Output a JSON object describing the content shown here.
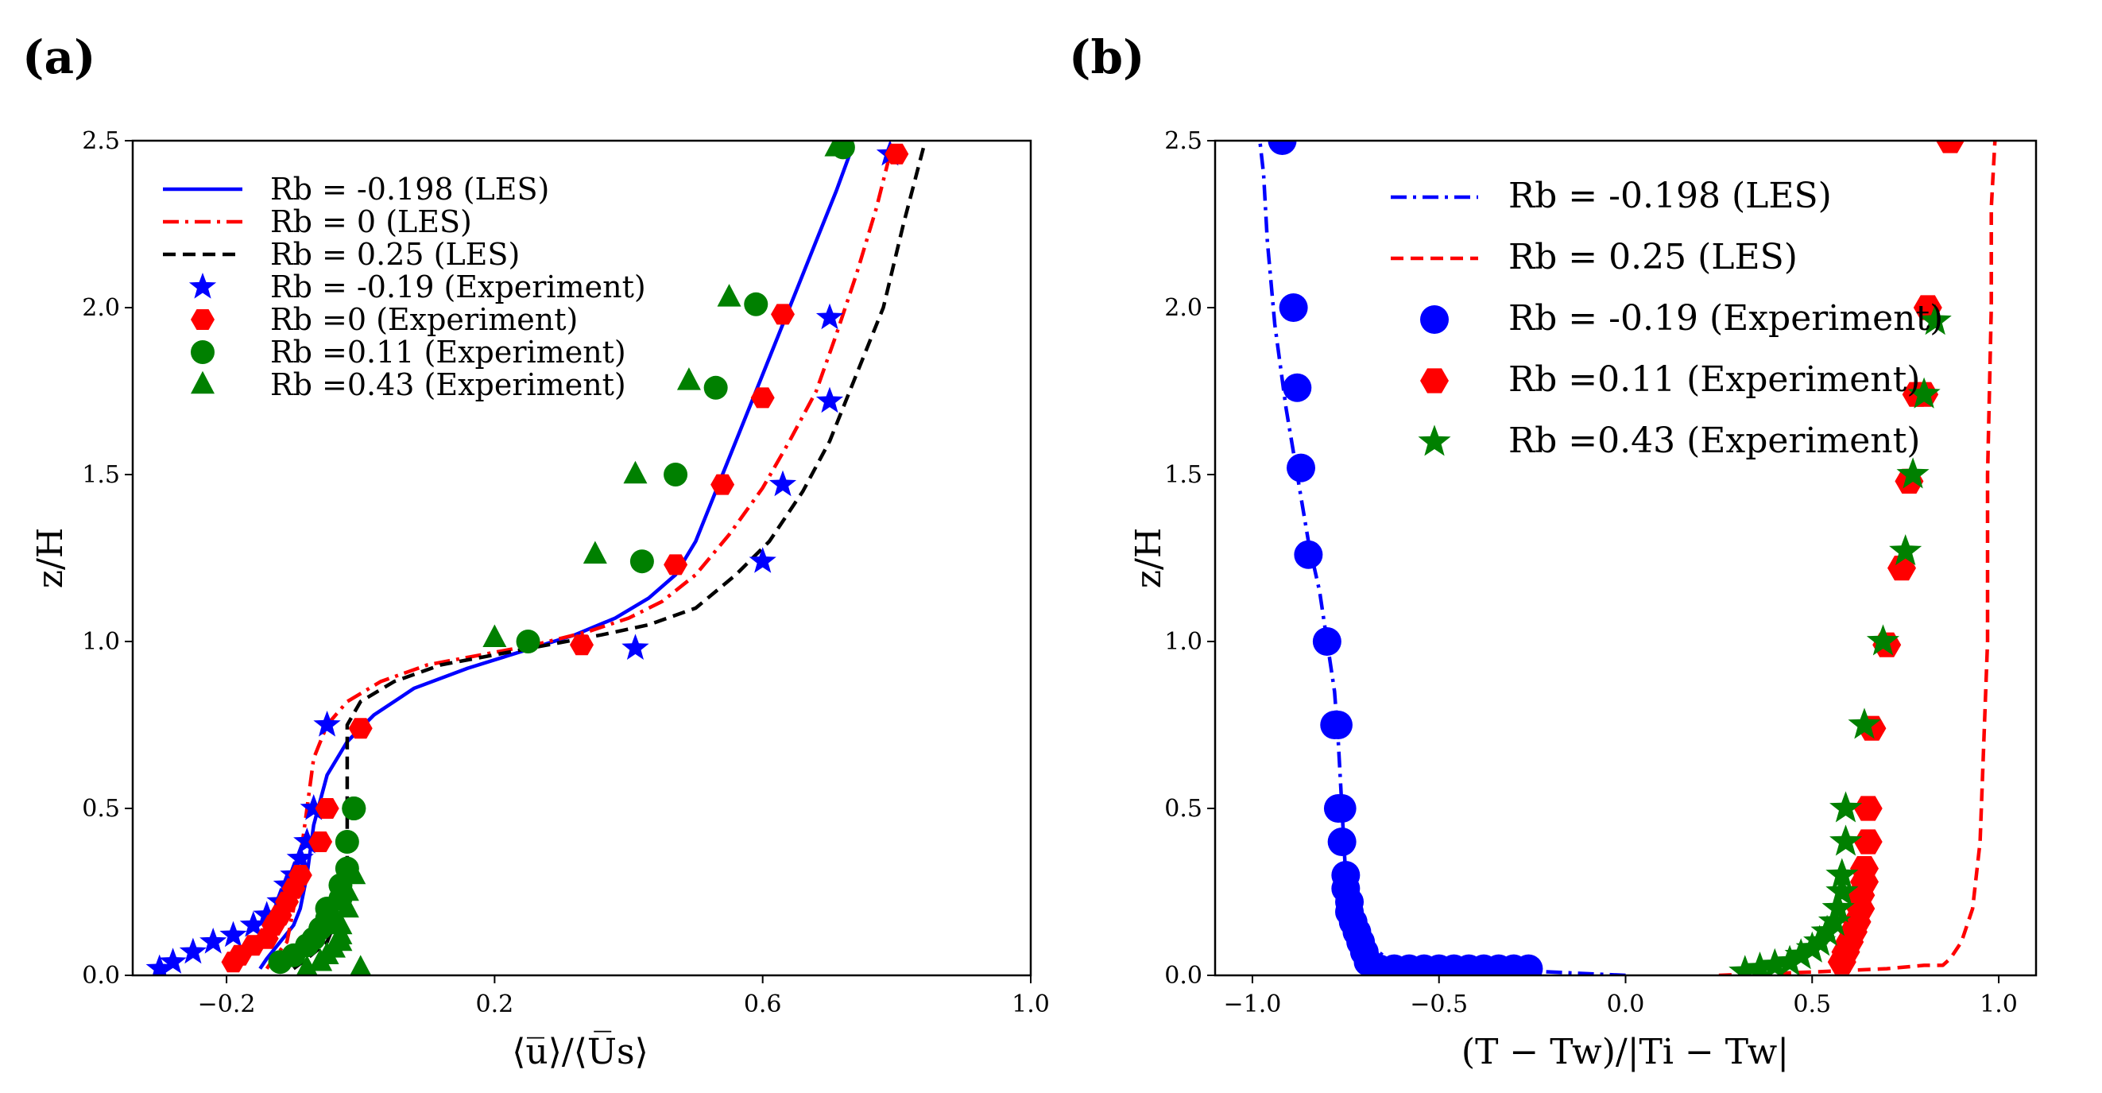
{
  "colors": {
    "blue": "#0000ff",
    "red": "#ff0000",
    "black": "#000000",
    "green": "#008000"
  },
  "chart_data": [
    {
      "panel": "(a)",
      "type": "line",
      "xlabel": "⟨u̅⟩/⟨U̅s⟩",
      "ylabel": "z/H",
      "xlim": [
        -0.34,
        1.0
      ],
      "ylim": [
        0.0,
        2.5
      ],
      "xticks": [
        -0.2,
        0.2,
        0.6,
        1.0
      ],
      "xtick_labels": [
        "−0.2",
        "0.2",
        "0.6",
        "1.0"
      ],
      "yticks": [
        0.0,
        0.5,
        1.0,
        1.5,
        2.0,
        2.5
      ],
      "ytick_labels": [
        "0.0",
        "0.5",
        "1.0",
        "1.5",
        "2.0",
        "2.5"
      ],
      "grid": false,
      "legend_position": "upper-left",
      "series": [
        {
          "name": "Rb = -0.198 (LES)",
          "kind": "line",
          "style": "solid",
          "color": "#0000ff",
          "x": [
            -0.15,
            -0.14,
            -0.12,
            -0.1,
            -0.09,
            -0.08,
            -0.07,
            -0.05,
            -0.02,
            0.02,
            0.08,
            0.16,
            0.24,
            0.32,
            0.38,
            0.43,
            0.47,
            0.5,
            0.53,
            0.56,
            0.59,
            0.62,
            0.65,
            0.68,
            0.71,
            0.73
          ],
          "y": [
            0.02,
            0.05,
            0.1,
            0.15,
            0.2,
            0.3,
            0.45,
            0.6,
            0.7,
            0.78,
            0.86,
            0.92,
            0.97,
            1.02,
            1.07,
            1.13,
            1.2,
            1.3,
            1.45,
            1.6,
            1.75,
            1.9,
            2.05,
            2.2,
            2.35,
            2.46
          ]
        },
        {
          "name": "Rb = 0 (LES)",
          "kind": "line",
          "style": "dashdot",
          "color": "#ff0000",
          "x": [
            -0.14,
            -0.13,
            -0.11,
            -0.1,
            -0.09,
            -0.08,
            -0.07,
            -0.05,
            -0.02,
            0.03,
            0.1,
            0.18,
            0.26,
            0.34,
            0.4,
            0.45,
            0.5,
            0.55,
            0.6,
            0.64,
            0.68,
            0.71,
            0.74,
            0.77,
            0.79
          ],
          "y": [
            0.02,
            0.05,
            0.1,
            0.2,
            0.35,
            0.5,
            0.65,
            0.75,
            0.82,
            0.88,
            0.93,
            0.96,
            0.99,
            1.03,
            1.07,
            1.12,
            1.2,
            1.32,
            1.46,
            1.6,
            1.75,
            1.92,
            2.1,
            2.3,
            2.46
          ]
        },
        {
          "name": "Rb = 0.25 (LES)",
          "kind": "line",
          "style": "dashed",
          "color": "#000000",
          "x": [
            -0.1,
            -0.08,
            -0.05,
            -0.03,
            -0.02,
            -0.02,
            -0.02,
            -0.02,
            0.0,
            0.05,
            0.12,
            0.2,
            0.28,
            0.36,
            0.43,
            0.5,
            0.56,
            0.61,
            0.66,
            0.7,
            0.74,
            0.78,
            0.81,
            0.84
          ],
          "y": [
            0.02,
            0.05,
            0.1,
            0.2,
            0.35,
            0.5,
            0.65,
            0.75,
            0.82,
            0.88,
            0.93,
            0.96,
            0.99,
            1.02,
            1.05,
            1.1,
            1.2,
            1.3,
            1.45,
            1.6,
            1.8,
            2.0,
            2.25,
            2.48
          ]
        },
        {
          "name": "Rb = -0.19 (Experiment)",
          "kind": "marker",
          "marker": "star",
          "color": "#0000ff",
          "x": [
            -0.3,
            -0.28,
            -0.25,
            -0.22,
            -0.19,
            -0.16,
            -0.14,
            -0.12,
            -0.11,
            -0.1,
            -0.09,
            -0.08,
            -0.07,
            -0.05,
            0.41,
            0.6,
            0.63,
            0.7,
            0.7,
            0.79
          ],
          "y": [
            0.02,
            0.04,
            0.07,
            0.1,
            0.12,
            0.15,
            0.18,
            0.22,
            0.27,
            0.3,
            0.35,
            0.4,
            0.5,
            0.75,
            0.98,
            1.24,
            1.47,
            1.72,
            1.97,
            2.46
          ]
        },
        {
          "name": "Rb =0 (Experiment)",
          "kind": "marker",
          "marker": "hexagon",
          "color": "#ff0000",
          "x": [
            -0.19,
            -0.18,
            -0.16,
            -0.14,
            -0.13,
            -0.12,
            -0.11,
            -0.1,
            -0.09,
            -0.06,
            -0.05,
            -0.05,
            0.0,
            0.33,
            0.47,
            0.54,
            0.6,
            0.63,
            0.8
          ],
          "y": [
            0.04,
            0.06,
            0.09,
            0.11,
            0.15,
            0.18,
            0.22,
            0.26,
            0.3,
            0.4,
            0.5,
            0.5,
            0.74,
            0.99,
            1.23,
            1.47,
            1.73,
            1.98,
            2.46
          ]
        },
        {
          "name": "Rb =0.11 (Experiment)",
          "kind": "marker",
          "marker": "circle",
          "color": "#008000",
          "x": [
            -0.12,
            -0.1,
            -0.08,
            -0.07,
            -0.06,
            -0.05,
            -0.05,
            -0.03,
            -0.03,
            -0.02,
            -0.02,
            -0.01,
            -0.01,
            0.25,
            0.42,
            0.47,
            0.53,
            0.59,
            0.72
          ],
          "y": [
            0.04,
            0.06,
            0.09,
            0.11,
            0.14,
            0.17,
            0.2,
            0.23,
            0.27,
            0.32,
            0.4,
            0.5,
            0.5,
            1.0,
            1.24,
            1.5,
            1.76,
            2.01,
            2.48
          ]
        },
        {
          "name": "Rb =0.43 (Experiment)",
          "kind": "marker",
          "marker": "triangle",
          "color": "#008000",
          "x": [
            -0.08,
            -0.06,
            -0.05,
            -0.04,
            -0.03,
            -0.03,
            -0.03,
            -0.02,
            -0.02,
            -0.01,
            0.0,
            0.2,
            0.35,
            0.41,
            0.49,
            0.55,
            0.71
          ],
          "y": [
            0.02,
            0.04,
            0.06,
            0.08,
            0.1,
            0.12,
            0.15,
            0.2,
            0.25,
            0.3,
            0.02,
            1.01,
            1.26,
            1.5,
            1.78,
            2.03,
            2.48
          ]
        }
      ]
    },
    {
      "panel": "(b)",
      "type": "line",
      "xlabel": "(T − Tw)/|Ti − Tw|",
      "ylabel": "z/H",
      "xlim": [
        -1.1,
        1.1
      ],
      "ylim": [
        0.0,
        2.5
      ],
      "xticks": [
        -1.0,
        -0.5,
        0.0,
        0.5,
        1.0
      ],
      "xtick_labels": [
        "−1.0",
        "−0.5",
        "0.0",
        "0.5",
        "1.0"
      ],
      "yticks": [
        0.0,
        0.5,
        1.0,
        1.5,
        2.0,
        2.5
      ],
      "ytick_labels": [
        "0.0",
        "0.5",
        "1.0",
        "1.5",
        "2.0",
        "2.5"
      ],
      "grid": false,
      "legend_position": "upper-center",
      "series": [
        {
          "name": "Rb = -0.198 (LES)",
          "kind": "line",
          "style": "dashdot",
          "color": "#0000ff",
          "x": [
            0.0,
            -0.2,
            -0.4,
            -0.55,
            -0.65,
            -0.7,
            -0.72,
            -0.74,
            -0.75,
            -0.76,
            -0.77,
            -0.78,
            -0.8,
            -0.82,
            -0.85,
            -0.88,
            -0.91,
            -0.94,
            -0.96,
            -0.97,
            -0.98
          ],
          "y": [
            0.0,
            0.01,
            0.02,
            0.03,
            0.06,
            0.1,
            0.15,
            0.2,
            0.3,
            0.5,
            0.7,
            0.85,
            1.0,
            1.15,
            1.3,
            1.5,
            1.7,
            1.95,
            2.2,
            2.4,
            2.5
          ]
        },
        {
          "name": "Rb = 0.25 (LES)",
          "kind": "line",
          "style": "dashed",
          "color": "#ff0000",
          "x": [
            0.25,
            0.5,
            0.7,
            0.8,
            0.85,
            0.87,
            0.9,
            0.93,
            0.95,
            0.96,
            0.97,
            0.97,
            0.98,
            0.98,
            0.99
          ],
          "y": [
            0.0,
            0.01,
            0.02,
            0.03,
            0.03,
            0.05,
            0.1,
            0.2,
            0.4,
            0.7,
            1.0,
            1.5,
            2.0,
            2.3,
            2.5
          ]
        },
        {
          "name": "Rb = -0.19 (Experiment)",
          "kind": "marker",
          "marker": "circle",
          "color": "#0000ff",
          "x": [
            -0.26,
            -0.3,
            -0.34,
            -0.38,
            -0.42,
            -0.46,
            -0.5,
            -0.54,
            -0.58,
            -0.62,
            -0.66,
            -0.69,
            -0.7,
            -0.71,
            -0.72,
            -0.73,
            -0.74,
            -0.74,
            -0.75,
            -0.75,
            -0.76,
            -0.76,
            -0.77,
            -0.77,
            -0.78,
            -0.8,
            -0.85,
            -0.87,
            -0.88,
            -0.89,
            -0.92
          ],
          "y": [
            0.02,
            0.02,
            0.02,
            0.02,
            0.02,
            0.02,
            0.02,
            0.02,
            0.02,
            0.02,
            0.02,
            0.04,
            0.07,
            0.1,
            0.13,
            0.16,
            0.19,
            0.22,
            0.26,
            0.3,
            0.4,
            0.5,
            0.5,
            0.75,
            0.75,
            1.0,
            1.26,
            1.52,
            1.76,
            2.0,
            2.5
          ]
        },
        {
          "name": "Rb =0.11 (Experiment)",
          "kind": "marker",
          "marker": "hexagon",
          "color": "#ff0000",
          "x": [
            0.58,
            0.59,
            0.6,
            0.61,
            0.62,
            0.63,
            0.63,
            0.64,
            0.64,
            0.65,
            0.65,
            0.66,
            0.7,
            0.74,
            0.76,
            0.78,
            0.8,
            0.81,
            0.87
          ],
          "y": [
            0.04,
            0.07,
            0.1,
            0.13,
            0.16,
            0.2,
            0.24,
            0.28,
            0.32,
            0.4,
            0.5,
            0.74,
            0.99,
            1.22,
            1.48,
            1.74,
            1.74,
            2.0,
            2.5
          ]
        },
        {
          "name": "Rb =0.43 (Experiment)",
          "kind": "marker",
          "marker": "star",
          "color": "#008000",
          "x": [
            0.32,
            0.36,
            0.4,
            0.44,
            0.47,
            0.5,
            0.52,
            0.54,
            0.56,
            0.57,
            0.58,
            0.58,
            0.59,
            0.59,
            0.64,
            0.69,
            0.75,
            0.77,
            0.8,
            0.83
          ],
          "y": [
            0.01,
            0.02,
            0.03,
            0.04,
            0.06,
            0.08,
            0.1,
            0.13,
            0.16,
            0.2,
            0.25,
            0.3,
            0.4,
            0.5,
            0.75,
            1.0,
            1.27,
            1.5,
            1.74,
            1.96
          ]
        }
      ]
    }
  ]
}
